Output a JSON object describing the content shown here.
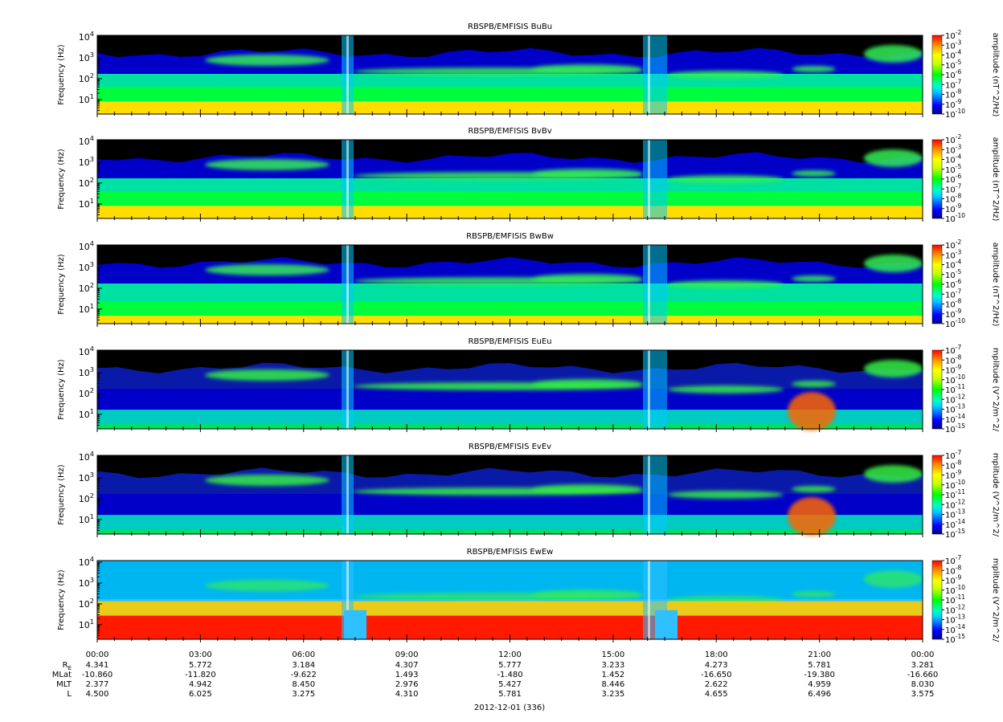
{
  "chart_data": {
    "type": "heatmap",
    "figure_title": "",
    "panels": [
      {
        "title": "RBSPB/EMFISIS  BuBu",
        "ylabel": "Frequency (Hz)",
        "yticks": [
          "10^1",
          "10^2",
          "10^3",
          "10^4"
        ],
        "ylim_hz": [
          2,
          12000
        ],
        "yscale": "log",
        "colorbar": {
          "label": "amplitude (nT^2/Hz)",
          "ticks": [
            "10^-2",
            "10^-3",
            "10^-4",
            "10^-5",
            "10^-6",
            "10^-7",
            "10^-8",
            "10^-9",
            "10^-10"
          ],
          "range": [
            -10,
            -2
          ]
        }
      },
      {
        "title": "RBSPB/EMFISIS  BvBv",
        "ylabel": "Frequency (Hz)",
        "yticks": [
          "10^1",
          "10^2",
          "10^3",
          "10^4"
        ],
        "ylim_hz": [
          2,
          12000
        ],
        "yscale": "log",
        "colorbar": {
          "label": "amplitude (nT^2/Hz)",
          "ticks": [
            "10^-2",
            "10^-3",
            "10^-4",
            "10^-5",
            "10^-6",
            "10^-7",
            "10^-8",
            "10^-9",
            "10^-10"
          ],
          "range": [
            -10,
            -2
          ]
        }
      },
      {
        "title": "RBSPB/EMFISIS  BwBw",
        "ylabel": "Frequency (Hz)",
        "yticks": [
          "10^1",
          "10^2",
          "10^3",
          "10^4"
        ],
        "ylim_hz": [
          2,
          12000
        ],
        "yscale": "log",
        "colorbar": {
          "label": "amplitude (nT^2/Hz)",
          "ticks": [
            "10^-2",
            "10^-3",
            "10^-4",
            "10^-5",
            "10^-6",
            "10^-7",
            "10^-8",
            "10^-9",
            "10^-10"
          ],
          "range": [
            -10,
            -2
          ]
        }
      },
      {
        "title": "RBSPB/EMFISIS  EuEu",
        "ylabel": "Frequency (Hz)",
        "yticks": [
          "10^1",
          "10^2",
          "10^3",
          "10^4"
        ],
        "ylim_hz": [
          2,
          12000
        ],
        "yscale": "log",
        "colorbar": {
          "label": "mplitude (V^2/m^2/",
          "ticks": [
            "10^-7",
            "10^-8",
            "10^-9",
            "10^-10",
            "10^-11",
            "10^-12",
            "10^-13",
            "10^-14",
            "10^-15"
          ],
          "range": [
            -15,
            -7
          ]
        }
      },
      {
        "title": "RBSPB/EMFISIS  EvEv",
        "ylabel": "Frequency (Hz)",
        "yticks": [
          "10^1",
          "10^2",
          "10^3",
          "10^4"
        ],
        "ylim_hz": [
          2,
          12000
        ],
        "yscale": "log",
        "colorbar": {
          "label": "mplitude (V^2/m^2/",
          "ticks": [
            "10^-7",
            "10^-8",
            "10^-9",
            "10^-10",
            "10^-11",
            "10^-12",
            "10^-13",
            "10^-14",
            "10^-15"
          ],
          "range": [
            -15,
            -7
          ]
        }
      },
      {
        "title": "RBSPB/EMFISIS  EwEw",
        "ylabel": "Frequency (Hz)",
        "yticks": [
          "10^1",
          "10^2",
          "10^3",
          "10^4"
        ],
        "ylim_hz": [
          2,
          12000
        ],
        "yscale": "log",
        "colorbar": {
          "label": "mplitude (V^2/m^2/",
          "ticks": [
            "10^-7",
            "10^-8",
            "10^-9",
            "10^-10",
            "10^-11",
            "10^-12",
            "10^-13",
            "10^-14",
            "10^-15"
          ],
          "range": [
            -15,
            -7
          ]
        }
      }
    ],
    "x_axis": {
      "ticks": [
        "00:00",
        "03:00",
        "06:00",
        "09:00",
        "12:00",
        "15:00",
        "18:00",
        "21:00",
        "00:00"
      ],
      "ephemeris": [
        {
          "label": "R_E",
          "values": [
            "4.341",
            "5.772",
            "3.184",
            "4.307",
            "5.777",
            "3.233",
            "4.273",
            "5.781",
            "3.281"
          ]
        },
        {
          "label": "MLat",
          "values": [
            "-10.860",
            "-11.820",
            "-9.622",
            "1.493",
            "-1.480",
            "1.452",
            "-16.650",
            "-19.380",
            "-16.660"
          ]
        },
        {
          "label": "MLT",
          "values": [
            "2.377",
            "4.942",
            "8.450",
            "2.976",
            "5.427",
            "8.446",
            "2.622",
            "4.959",
            "8.030"
          ]
        },
        {
          "label": "L",
          "values": [
            "4.500",
            "6.025",
            "3.275",
            "4.310",
            "5.781",
            "3.235",
            "4.655",
            "6.496",
            "3.575"
          ]
        }
      ],
      "date_label": "2012-12-01 (336)"
    }
  }
}
